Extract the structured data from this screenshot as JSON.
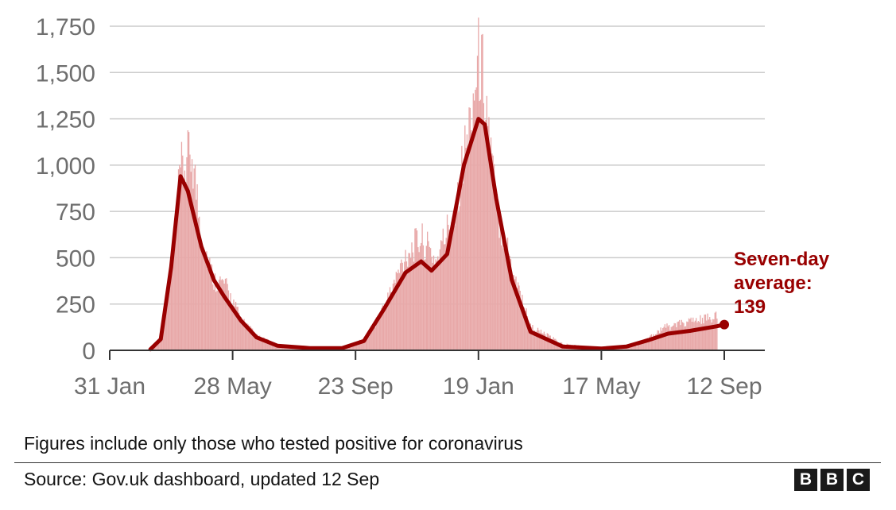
{
  "chart_data": {
    "type": "bar+line",
    "title": "",
    "xlabel": "",
    "ylabel": "",
    "ylim": [
      0,
      1750
    ],
    "yticks": [
      0,
      250,
      500,
      750,
      1000,
      1250,
      1500,
      1750
    ],
    "ytick_labels": [
      "0",
      "250",
      "500",
      "750",
      "1,000",
      "1,250",
      "1,500",
      "1,750"
    ],
    "x_range": [
      "2020-01-31",
      "2021-09-12"
    ],
    "xticks": [
      "2020-01-31",
      "2020-05-28",
      "2020-09-23",
      "2021-01-19",
      "2021-05-17",
      "2021-09-12"
    ],
    "xtick_labels": [
      "31 Jan",
      "28 May",
      "23 Sep",
      "19 Jan",
      "17 May",
      "12 Sep"
    ],
    "grid": true,
    "bar_color": "#e8a8a8",
    "line_color": "#990000",
    "series": [
      {
        "kind": "bar",
        "values": [
          {
            "x": "2020-03-10",
            "y": 5
          },
          {
            "x": "2020-03-20",
            "y": 80
          },
          {
            "x": "2020-03-31",
            "y": 550
          },
          {
            "x": "2020-04-08",
            "y": 1120
          },
          {
            "x": "2020-04-12",
            "y": 1160
          },
          {
            "x": "2020-04-19",
            "y": 1240
          },
          {
            "x": "2020-04-28",
            "y": 720
          },
          {
            "x": "2020-05-10",
            "y": 440
          },
          {
            "x": "2020-05-20",
            "y": 420
          },
          {
            "x": "2020-06-05",
            "y": 200
          },
          {
            "x": "2020-06-20",
            "y": 90
          },
          {
            "x": "2020-07-10",
            "y": 35
          },
          {
            "x": "2020-08-10",
            "y": 15
          },
          {
            "x": "2020-09-10",
            "y": 15
          },
          {
            "x": "2020-10-05",
            "y": 80
          },
          {
            "x": "2020-10-25",
            "y": 340
          },
          {
            "x": "2020-11-10",
            "y": 600
          },
          {
            "x": "2020-11-25",
            "y": 700
          },
          {
            "x": "2020-12-10",
            "y": 560
          },
          {
            "x": "2020-12-28",
            "y": 920
          },
          {
            "x": "2021-01-10",
            "y": 1400
          },
          {
            "x": "2021-01-19",
            "y": 1820
          },
          {
            "x": "2021-01-24",
            "y": 1730
          },
          {
            "x": "2021-02-05",
            "y": 900
          },
          {
            "x": "2021-02-20",
            "y": 540
          },
          {
            "x": "2021-03-10",
            "y": 150
          },
          {
            "x": "2021-04-10",
            "y": 40
          },
          {
            "x": "2021-05-17",
            "y": 12
          },
          {
            "x": "2021-06-20",
            "y": 30
          },
          {
            "x": "2021-07-15",
            "y": 140
          },
          {
            "x": "2021-08-10",
            "y": 180
          },
          {
            "x": "2021-09-05",
            "y": 210
          }
        ]
      },
      {
        "kind": "line",
        "values": [
          {
            "x": "2020-03-10",
            "y": 5
          },
          {
            "x": "2020-03-20",
            "y": 60
          },
          {
            "x": "2020-03-30",
            "y": 450
          },
          {
            "x": "2020-04-08",
            "y": 940
          },
          {
            "x": "2020-04-15",
            "y": 860
          },
          {
            "x": "2020-04-28",
            "y": 560
          },
          {
            "x": "2020-05-10",
            "y": 380
          },
          {
            "x": "2020-05-20",
            "y": 290
          },
          {
            "x": "2020-06-05",
            "y": 160
          },
          {
            "x": "2020-06-20",
            "y": 70
          },
          {
            "x": "2020-07-10",
            "y": 25
          },
          {
            "x": "2020-08-10",
            "y": 12
          },
          {
            "x": "2020-09-10",
            "y": 12
          },
          {
            "x": "2020-10-01",
            "y": 50
          },
          {
            "x": "2020-10-20",
            "y": 220
          },
          {
            "x": "2020-11-10",
            "y": 420
          },
          {
            "x": "2020-11-25",
            "y": 480
          },
          {
            "x": "2020-12-05",
            "y": 430
          },
          {
            "x": "2020-12-20",
            "y": 520
          },
          {
            "x": "2021-01-05",
            "y": 1000
          },
          {
            "x": "2021-01-19",
            "y": 1250
          },
          {
            "x": "2021-01-25",
            "y": 1220
          },
          {
            "x": "2021-02-05",
            "y": 820
          },
          {
            "x": "2021-02-20",
            "y": 380
          },
          {
            "x": "2021-03-10",
            "y": 100
          },
          {
            "x": "2021-04-10",
            "y": 20
          },
          {
            "x": "2021-05-17",
            "y": 10
          },
          {
            "x": "2021-06-10",
            "y": 20
          },
          {
            "x": "2021-07-01",
            "y": 55
          },
          {
            "x": "2021-07-20",
            "y": 90
          },
          {
            "x": "2021-08-10",
            "y": 105
          },
          {
            "x": "2021-09-05",
            "y": 130
          },
          {
            "x": "2021-09-12",
            "y": 139
          }
        ]
      }
    ],
    "annotation": {
      "line1": "Seven-day",
      "line2": "average:",
      "line3": "139"
    }
  },
  "footnote": "Figures include only those who tested positive for coronavirus",
  "source": "Source: Gov.uk dashboard, updated 12 Sep",
  "logo": {
    "letters": [
      "B",
      "B",
      "C"
    ]
  }
}
